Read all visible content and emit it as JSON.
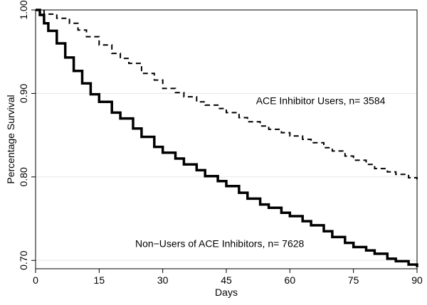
{
  "chart_data": {
    "type": "line",
    "title": "",
    "xlabel": "Days",
    "ylabel": "Percentage Survival",
    "xlim": [
      0,
      90
    ],
    "ylim": [
      0.69,
      1.0
    ],
    "grid": true,
    "x_ticks": [
      0,
      15,
      30,
      45,
      60,
      75,
      90
    ],
    "x_tick_labels": [
      "0",
      "15",
      "30",
      "45",
      "60",
      "75",
      "90"
    ],
    "y_ticks": [
      0.7,
      0.8,
      0.9,
      1.0
    ],
    "y_tick_labels": [
      "0.70",
      "0.80",
      "0.90",
      "1.00"
    ],
    "annotations": [
      {
        "text": "ACE Inhibitor Users, n= 3584",
        "x": 52,
        "y": 0.887
      },
      {
        "text": "Non−Users of ACE Inhibitors, n= 7628",
        "x": 23.5,
        "y": 0.716
      }
    ],
    "series": [
      {
        "style": "dashed",
        "color": "#000000",
        "x": [
          0,
          2,
          5,
          8,
          10,
          12,
          15,
          18,
          20,
          22,
          25,
          28,
          30,
          33,
          35,
          38,
          40,
          43,
          45,
          48,
          50,
          53,
          55,
          58,
          60,
          63,
          65,
          68,
          70,
          73,
          75,
          78,
          80,
          83,
          85,
          88,
          90
        ],
        "y": [
          1.0,
          0.995,
          0.99,
          0.984,
          0.976,
          0.968,
          0.958,
          0.948,
          0.942,
          0.936,
          0.924,
          0.916,
          0.906,
          0.901,
          0.896,
          0.89,
          0.886,
          0.882,
          0.877,
          0.871,
          0.866,
          0.861,
          0.857,
          0.853,
          0.849,
          0.845,
          0.841,
          0.835,
          0.831,
          0.825,
          0.82,
          0.815,
          0.81,
          0.806,
          0.803,
          0.799,
          0.797
        ]
      },
      {
        "style": "solid",
        "color": "#000000",
        "x": [
          0,
          1,
          2,
          3,
          5,
          7,
          9,
          11,
          13,
          15,
          18,
          20,
          23,
          25,
          28,
          30,
          33,
          35,
          38,
          40,
          43,
          45,
          48,
          50,
          53,
          55,
          58,
          60,
          63,
          65,
          68,
          70,
          73,
          75,
          78,
          80,
          83,
          85,
          88,
          90
        ],
        "y": [
          1.0,
          0.994,
          0.984,
          0.975,
          0.96,
          0.943,
          0.927,
          0.912,
          0.899,
          0.89,
          0.877,
          0.87,
          0.858,
          0.848,
          0.836,
          0.829,
          0.822,
          0.815,
          0.808,
          0.801,
          0.795,
          0.789,
          0.781,
          0.774,
          0.767,
          0.763,
          0.757,
          0.753,
          0.747,
          0.742,
          0.735,
          0.728,
          0.721,
          0.716,
          0.712,
          0.708,
          0.702,
          0.699,
          0.695,
          0.692
        ]
      }
    ]
  }
}
